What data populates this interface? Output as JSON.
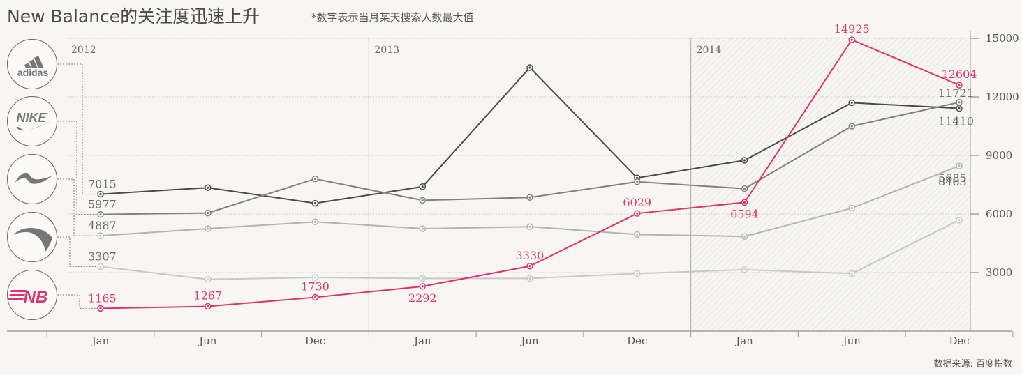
{
  "title": "New Balance的关注度迅速上升",
  "subtitle": "*数字表示当月某天搜索人数最大值",
  "source": "数据来源: 百度指数",
  "colors": {
    "adidas": "#4a4a4a",
    "nike": "#808080",
    "lining": "#b3b3b3",
    "anta": "#c8c8c8",
    "newbalance": "#e0306f",
    "grid": "#cfcfcf",
    "text": "#555555"
  },
  "logos": [
    {
      "brand": "adidas",
      "icon": "adidas-logo-icon",
      "text": "adidas"
    },
    {
      "brand": "nike",
      "icon": "nike-swoosh-icon",
      "text": "NIKE"
    },
    {
      "brand": "lining",
      "icon": "lining-logo-icon",
      "text": ""
    },
    {
      "brand": "anta",
      "icon": "anta-logo-icon",
      "text": ""
    },
    {
      "brand": "newbalance",
      "icon": "newbalance-logo-icon",
      "text": "NB"
    }
  ],
  "chart_data": {
    "type": "line",
    "years": [
      "2012",
      "2013",
      "2014"
    ],
    "categories": [
      "Jan",
      "Jun",
      "Dec",
      "Jan",
      "Jun",
      "Dec",
      "Jan",
      "Jun",
      "Dec"
    ],
    "ylim": [
      0,
      15000
    ],
    "yticks": [
      3000,
      6000,
      9000,
      12000,
      15000
    ],
    "series": [
      {
        "brand": "adidas",
        "values": [
          7015,
          7350,
          6550,
          7400,
          13500,
          7850,
          8750,
          11700,
          11410
        ],
        "labels": [
          {
            "i": 0,
            "text": "7015"
          },
          {
            "i": 8,
            "text": "11410"
          }
        ]
      },
      {
        "brand": "nike",
        "values": [
          5977,
          6050,
          7800,
          6700,
          6850,
          7650,
          7300,
          10500,
          11721
        ],
        "labels": [
          {
            "i": 0,
            "text": "5977"
          },
          {
            "i": 8,
            "text": "11721"
          }
        ]
      },
      {
        "brand": "lining",
        "values": [
          4887,
          5250,
          5600,
          5250,
          5350,
          4950,
          4850,
          6300,
          8463
        ],
        "labels": [
          {
            "i": 0,
            "text": "4887"
          },
          {
            "i": 8,
            "text": "8463"
          }
        ]
      },
      {
        "brand": "anta",
        "values": [
          3307,
          2650,
          2750,
          2700,
          2700,
          2950,
          3150,
          2950,
          5685
        ],
        "labels": [
          {
            "i": 0,
            "text": "3307"
          },
          {
            "i": 8,
            "text": "5685"
          }
        ]
      },
      {
        "brand": "newbalance",
        "values": [
          1165,
          1267,
          1730,
          2292,
          3330,
          6029,
          6594,
          14925,
          12604
        ],
        "labels": [
          {
            "i": 0,
            "text": "1165"
          },
          {
            "i": 1,
            "text": "1267"
          },
          {
            "i": 2,
            "text": "1730"
          },
          {
            "i": 3,
            "text": "2292"
          },
          {
            "i": 4,
            "text": "3330"
          },
          {
            "i": 5,
            "text": "6029"
          },
          {
            "i": 6,
            "text": "6594"
          },
          {
            "i": 7,
            "text": "14925"
          },
          {
            "i": 8,
            "text": "12604"
          }
        ]
      }
    ]
  }
}
